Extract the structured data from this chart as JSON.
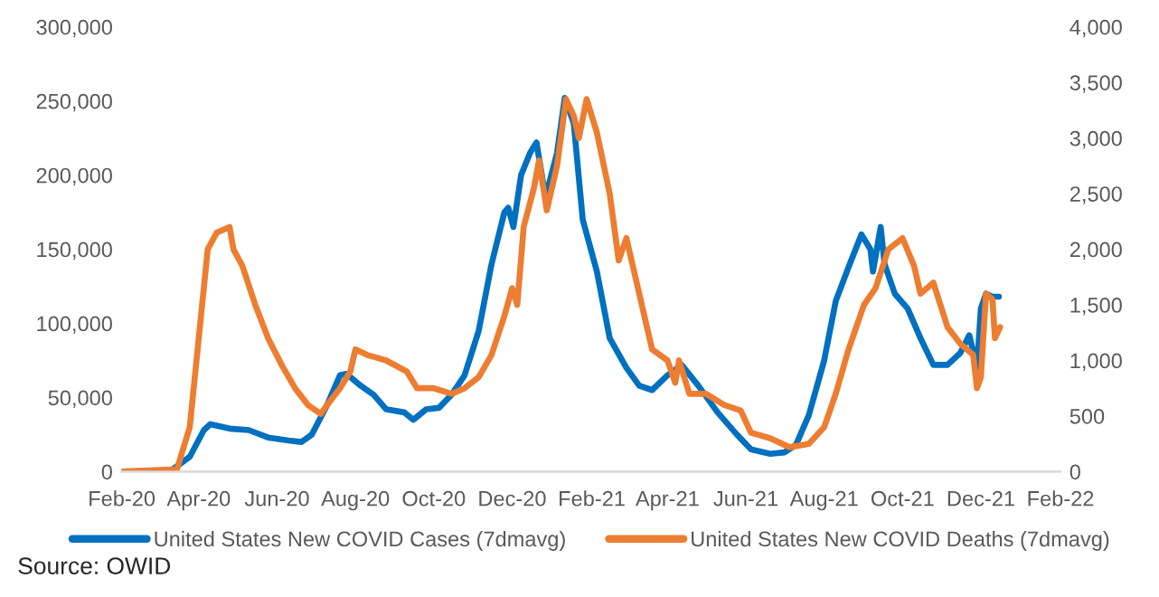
{
  "chart_data": {
    "type": "line",
    "xlim": [
      "2020-02-01",
      "2022-02-01"
    ],
    "xticks": [
      {
        "value": "2020-02-01",
        "label": "Feb-20"
      },
      {
        "value": "2020-04-01",
        "label": "Apr-20"
      },
      {
        "value": "2020-06-01",
        "label": "Jun-20"
      },
      {
        "value": "2020-08-01",
        "label": "Aug-20"
      },
      {
        "value": "2020-10-01",
        "label": "Oct-20"
      },
      {
        "value": "2020-12-01",
        "label": "Dec-20"
      },
      {
        "value": "2021-02-01",
        "label": "Feb-21"
      },
      {
        "value": "2021-04-01",
        "label": "Apr-21"
      },
      {
        "value": "2021-06-01",
        "label": "Jun-21"
      },
      {
        "value": "2021-08-01",
        "label": "Aug-21"
      },
      {
        "value": "2021-10-01",
        "label": "Oct-21"
      },
      {
        "value": "2021-12-01",
        "label": "Dec-21"
      },
      {
        "value": "2022-02-01",
        "label": "Feb-22"
      }
    ],
    "ylim": [
      0,
      300000
    ],
    "yticks": [
      0,
      {
        "value": 50000,
        "label": "50,000"
      },
      {
        "value": 100000,
        "label": "100,000"
      },
      {
        "value": 150000,
        "label": "150,000"
      },
      {
        "value": 200000,
        "label": "200,000"
      },
      {
        "value": 250000,
        "label": "250,000"
      },
      {
        "value": 300000,
        "label": "300,000"
      }
    ],
    "y2lim": [
      0,
      4000
    ],
    "y2ticks": [
      0,
      500,
      {
        "value": 1000,
        "label": "1,000"
      },
      {
        "value": 1500,
        "label": "1,500"
      },
      {
        "value": 2000,
        "label": "2,000"
      },
      {
        "value": 2500,
        "label": "2,500"
      },
      {
        "value": 3000,
        "label": "3,000"
      },
      {
        "value": 3500,
        "label": "3,500"
      },
      {
        "value": 4000,
        "label": "4,000"
      }
    ],
    "grid": false,
    "legend": "bottom",
    "series": [
      {
        "name": "United States New COVID Cases (7dmavg)",
        "color": "#0070c0",
        "x": [
          "2020-02-01",
          "2020-03-10",
          "2020-03-25",
          "2020-04-05",
          "2020-04-10",
          "2020-04-25",
          "2020-05-10",
          "2020-05-25",
          "2020-06-10",
          "2020-06-20",
          "2020-06-28",
          "2020-07-10",
          "2020-07-20",
          "2020-07-25",
          "2020-08-05",
          "2020-08-15",
          "2020-08-25",
          "2020-09-08",
          "2020-09-15",
          "2020-09-25",
          "2020-10-05",
          "2020-10-15",
          "2020-10-25",
          "2020-11-05",
          "2020-11-15",
          "2020-11-25",
          "2020-11-28",
          "2020-12-02",
          "2020-12-08",
          "2020-12-15",
          "2020-12-20",
          "2020-12-27",
          "2021-01-05",
          "2021-01-11",
          "2021-01-18",
          "2021-01-25",
          "2021-02-05",
          "2021-02-15",
          "2021-02-28",
          "2021-03-10",
          "2021-03-20",
          "2021-04-01",
          "2021-04-12",
          "2021-04-25",
          "2021-05-10",
          "2021-05-25",
          "2021-06-05",
          "2021-06-20",
          "2021-07-01",
          "2021-07-10",
          "2021-07-20",
          "2021-08-01",
          "2021-08-10",
          "2021-08-20",
          "2021-08-30",
          "2021-09-06",
          "2021-09-08",
          "2021-09-14",
          "2021-09-17",
          "2021-09-25",
          "2021-10-05",
          "2021-10-15",
          "2021-10-25",
          "2021-11-05",
          "2021-11-15",
          "2021-11-22",
          "2021-11-28",
          "2021-12-01",
          "2021-12-05",
          "2021-12-10",
          "2021-12-15"
        ],
        "values": [
          0,
          500,
          10000,
          28000,
          32000,
          29000,
          28000,
          23000,
          21000,
          20000,
          25000,
          45000,
          65000,
          66000,
          58000,
          52000,
          42000,
          40000,
          35000,
          42000,
          43000,
          52000,
          65000,
          95000,
          140000,
          175000,
          178000,
          165000,
          200000,
          215000,
          222000,
          185000,
          215000,
          252000,
          235000,
          170000,
          135000,
          90000,
          70000,
          58000,
          55000,
          65000,
          72000,
          58000,
          40000,
          25000,
          15000,
          12000,
          13000,
          18000,
          38000,
          75000,
          115000,
          138000,
          160000,
          150000,
          135000,
          165000,
          140000,
          120000,
          110000,
          90000,
          72000,
          72000,
          80000,
          92000,
          70000,
          110000,
          120000,
          118000,
          118000
        ]
      },
      {
        "name": "United States New COVID Deaths (7dmavg)",
        "color": "#ed7d31",
        "axis": "y2",
        "x": [
          "2020-02-01",
          "2020-03-15",
          "2020-03-25",
          "2020-04-01",
          "2020-04-08",
          "2020-04-15",
          "2020-04-25",
          "2020-04-28",
          "2020-05-05",
          "2020-05-15",
          "2020-05-25",
          "2020-06-05",
          "2020-06-15",
          "2020-06-25",
          "2020-07-05",
          "2020-07-10",
          "2020-07-20",
          "2020-07-28",
          "2020-08-01",
          "2020-08-10",
          "2020-08-25",
          "2020-09-10",
          "2020-09-18",
          "2020-10-01",
          "2020-10-15",
          "2020-10-25",
          "2020-11-05",
          "2020-11-15",
          "2020-11-25",
          "2020-12-01",
          "2020-12-05",
          "2020-12-10",
          "2020-12-18",
          "2020-12-22",
          "2020-12-28",
          "2021-01-05",
          "2021-01-12",
          "2021-01-18",
          "2021-01-22",
          "2021-01-28",
          "2021-02-05",
          "2021-02-15",
          "2021-02-22",
          "2021-02-28",
          "2021-03-10",
          "2021-03-20",
          "2021-04-01",
          "2021-04-07",
          "2021-04-10",
          "2021-04-18",
          "2021-05-01",
          "2021-05-15",
          "2021-05-28",
          "2021-06-05",
          "2021-06-20",
          "2021-07-05",
          "2021-07-20",
          "2021-08-01",
          "2021-08-10",
          "2021-08-20",
          "2021-09-01",
          "2021-09-10",
          "2021-09-20",
          "2021-10-01",
          "2021-10-10",
          "2021-10-15",
          "2021-10-25",
          "2021-11-05",
          "2021-11-15",
          "2021-11-25",
          "2021-11-28",
          "2021-12-01",
          "2021-12-05",
          "2021-12-10",
          "2021-12-12",
          "2021-12-16"
        ],
        "values": [
          0,
          20,
          400,
          1200,
          2000,
          2150,
          2200,
          2000,
          1850,
          1500,
          1200,
          950,
          750,
          600,
          520,
          600,
          750,
          900,
          1100,
          1050,
          1000,
          900,
          750,
          750,
          700,
          750,
          850,
          1050,
          1400,
          1650,
          1500,
          2200,
          2550,
          2800,
          2350,
          2750,
          3350,
          3200,
          3000,
          3350,
          3050,
          2500,
          1900,
          2100,
          1600,
          1100,
          1000,
          800,
          1000,
          700,
          700,
          600,
          550,
          350,
          300,
          220,
          250,
          400,
          700,
          1100,
          1500,
          1650,
          2000,
          2100,
          1850,
          1600,
          1700,
          1300,
          1150,
          1050,
          750,
          850,
          1600,
          1550,
          1200,
          1300
        ]
      }
    ],
    "annotations": [
      "Source: OWID"
    ]
  }
}
